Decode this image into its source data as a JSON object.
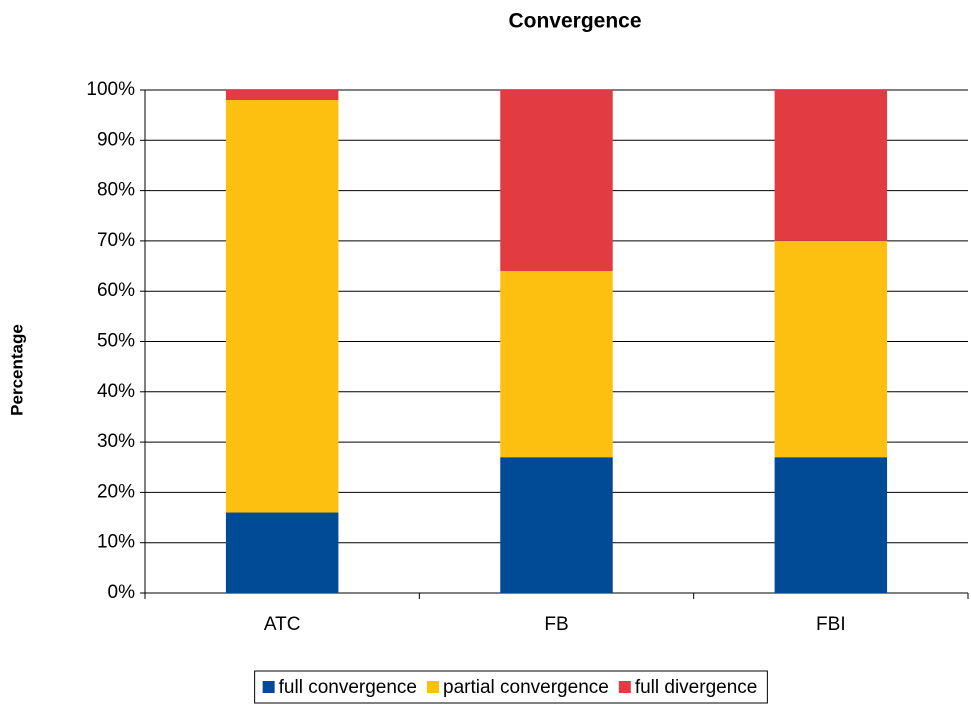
{
  "chart_data": {
    "type": "stacked_bar",
    "title": "Convergence",
    "y_label": "Percentage",
    "categories": [
      "ATC",
      "FB",
      "FBI"
    ],
    "series": [
      {
        "name": "full convergence",
        "color": "#004a96",
        "values": [
          16,
          27,
          27
        ]
      },
      {
        "name": "partial convergence",
        "color": "#fdc010",
        "values": [
          82,
          37,
          43
        ]
      },
      {
        "name": "full divergence",
        "color": "#e23b41",
        "values": [
          2,
          36,
          30
        ]
      }
    ],
    "ylim": [
      0,
      100
    ],
    "yticks": [
      {
        "value": 0,
        "label": "0%"
      },
      {
        "value": 10,
        "label": "10%"
      },
      {
        "value": 20,
        "label": "20%"
      },
      {
        "value": 30,
        "label": "30%"
      },
      {
        "value": 40,
        "label": "40%"
      },
      {
        "value": 50,
        "label": "50%"
      },
      {
        "value": 60,
        "label": "60%"
      },
      {
        "value": 70,
        "label": "70%"
      },
      {
        "value": 80,
        "label": "80%"
      },
      {
        "value": 90,
        "label": "90%"
      },
      {
        "value": 100,
        "label": "100%"
      }
    ],
    "grid": true,
    "legend": "bottom"
  }
}
